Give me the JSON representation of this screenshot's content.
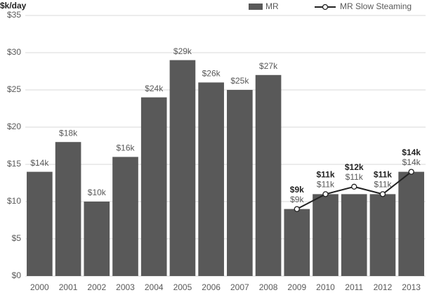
{
  "chart_data": {
    "type": "bar",
    "y_label": "$k/day",
    "categories": [
      "2000",
      "2001",
      "2002",
      "2003",
      "2004",
      "2005",
      "2006",
      "2007",
      "2008",
      "2009",
      "2010",
      "2011",
      "2012",
      "2013"
    ],
    "series": [
      {
        "name": "MR",
        "type": "bar",
        "color": "#595959",
        "values": [
          14,
          18,
          10,
          16,
          24,
          29,
          26,
          25,
          27,
          9,
          11,
          11,
          11,
          14
        ],
        "value_labels": [
          "$14k",
          "$18k",
          "$10k",
          "$16k",
          "$24k",
          "$29k",
          "$26k",
          "$25k",
          "$27k",
          "$9k",
          "$11k",
          "$11k",
          "$11k",
          "$14k"
        ]
      },
      {
        "name": "MR Slow Steaming",
        "type": "line",
        "color": "#222222",
        "values": [
          null,
          null,
          null,
          null,
          null,
          null,
          null,
          null,
          null,
          9,
          11,
          12,
          11,
          14
        ],
        "value_labels": [
          null,
          null,
          null,
          null,
          null,
          null,
          null,
          null,
          null,
          "$9k",
          "$11k",
          "$12k",
          "$11k",
          "$14k"
        ]
      }
    ],
    "ylim": [
      0,
      35
    ],
    "yticks": [
      {
        "value": 0,
        "label": "$0"
      },
      {
        "value": 5,
        "label": "$5"
      },
      {
        "value": 10,
        "label": "$10"
      },
      {
        "value": 15,
        "label": "$15"
      },
      {
        "value": 20,
        "label": "$20"
      },
      {
        "value": 25,
        "label": "$25"
      },
      {
        "value": 30,
        "label": "$30"
      },
      {
        "value": 35,
        "label": "$35"
      }
    ],
    "grid": true,
    "legend": "top-right"
  }
}
